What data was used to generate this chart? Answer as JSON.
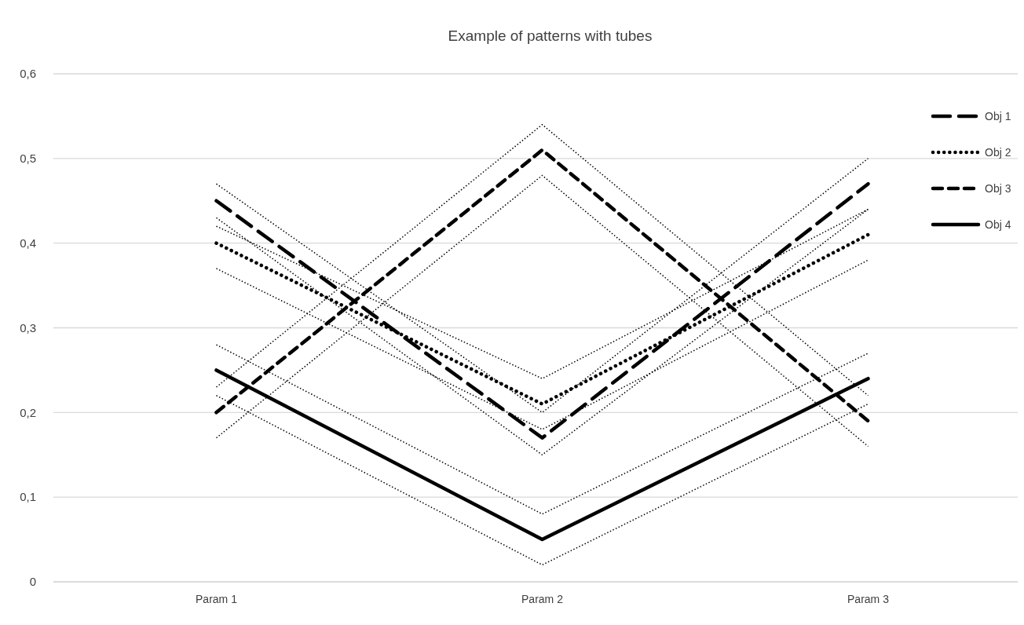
{
  "chart_data": {
    "type": "line",
    "title": "Example of patterns with tubes",
    "categories": [
      "Param 1",
      "Param 2",
      "Param 3"
    ],
    "ylim": [
      0,
      0.6
    ],
    "yticks": [
      {
        "value": 0,
        "label": "0"
      },
      {
        "value": 0.1,
        "label": "0,1"
      },
      {
        "value": 0.2,
        "label": "0,2"
      },
      {
        "value": 0.3,
        "label": "0,3"
      },
      {
        "value": 0.4,
        "label": "0,4"
      },
      {
        "value": 0.5,
        "label": "0,5"
      },
      {
        "value": 0.6,
        "label": "0,6"
      }
    ],
    "grid": "y",
    "legend": "top right",
    "marker": "none",
    "series": [
      {
        "name": "Obj 1",
        "color": "#000000",
        "line_style": "dashed",
        "values": [
          0.45,
          0.17,
          0.47
        ]
      },
      {
        "name": "Obj 2",
        "color": "#000000",
        "line_style": "dotted",
        "values": [
          0.4,
          0.21,
          0.41
        ]
      },
      {
        "name": "Obj 3",
        "color": "#000000",
        "line_style": "dashed",
        "values": [
          0.2,
          0.51,
          0.19
        ]
      },
      {
        "name": "Obj 4",
        "color": "#000000",
        "line_style": "solid",
        "values": [
          0.25,
          0.05,
          0.24
        ]
      },
      {
        "color": "#000000",
        "line_style": "dotted",
        "values": [
          0.43,
          0.15,
          0.44
        ]
      },
      {
        "color": "#000000",
        "line_style": "dotted",
        "values": [
          0.47,
          0.2,
          0.5
        ]
      },
      {
        "color": "#000000",
        "line_style": "dotted",
        "values": [
          0.37,
          0.18,
          0.38
        ]
      },
      {
        "color": "#000000",
        "line_style": "dotted",
        "values": [
          0.42,
          0.24,
          0.44
        ]
      },
      {
        "color": "#000000",
        "line_style": "dotted",
        "values": [
          0.17,
          0.48,
          0.16
        ]
      },
      {
        "color": "#000000",
        "line_style": "dotted",
        "values": [
          0.23,
          0.54,
          0.22
        ]
      },
      {
        "color": "#000000",
        "line_style": "dotted",
        "values": [
          0.22,
          0.02,
          0.21
        ]
      },
      {
        "color": "#000000",
        "line_style": "dotted",
        "values": [
          0.28,
          0.08,
          0.27
        ]
      }
    ]
  }
}
